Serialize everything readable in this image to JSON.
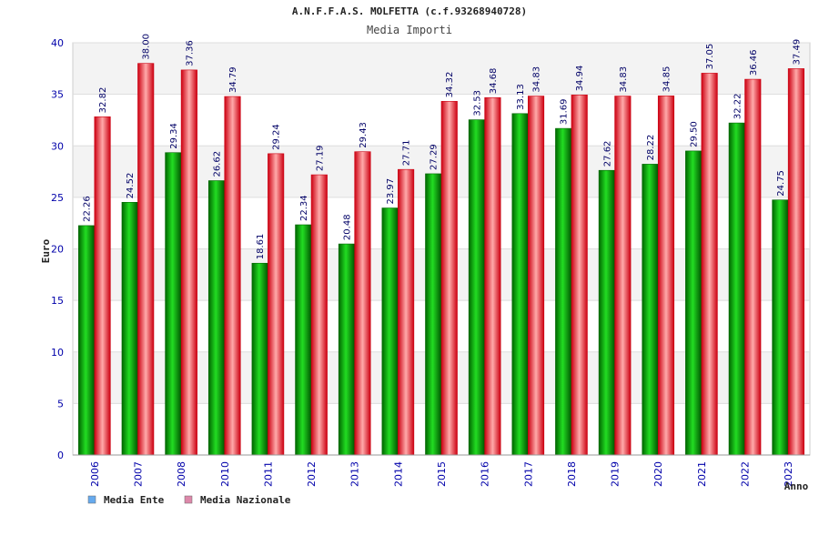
{
  "chart_data": {
    "type": "bar",
    "title": "A.N.F.F.A.S. MOLFETTA (c.f.93268940728)",
    "subtitle": "Media Importi",
    "xlabel": "Anno",
    "ylabel": "Euro",
    "ylim": [
      0,
      40
    ],
    "yticks": [
      "0",
      "5",
      "10",
      "15",
      "20",
      "25",
      "30",
      "35",
      "40"
    ],
    "categories": [
      "2006",
      "2007",
      "2008",
      "2010",
      "2011",
      "2012",
      "2013",
      "2014",
      "2015",
      "2016",
      "2017",
      "2018",
      "2019",
      "2020",
      "2021",
      "2022",
      "2023"
    ],
    "series": [
      {
        "name": "Media Ente",
        "color": "#00aa00",
        "values": [
          22.26,
          24.52,
          29.34,
          26.62,
          18.61,
          22.34,
          20.48,
          23.97,
          27.29,
          32.53,
          33.13,
          31.69,
          27.62,
          28.22,
          29.5,
          32.22,
          24.75
        ],
        "labels": [
          "22.26",
          "24.52",
          "29.34",
          "26.62",
          "18.61",
          "22.34",
          "20.48",
          "23.97",
          "27.29",
          "32.53",
          "33.13",
          "31.69",
          "27.62",
          "28.22",
          "29.50",
          "32.22",
          "24.75"
        ]
      },
      {
        "name": "Media Nazionale",
        "color": "#ee2233",
        "values": [
          32.82,
          38.0,
          37.36,
          34.79,
          29.24,
          27.19,
          29.43,
          27.71,
          34.32,
          34.68,
          34.83,
          34.94,
          34.83,
          34.85,
          37.05,
          36.46,
          37.49
        ],
        "labels": [
          "32.82",
          "38.00",
          "37.36",
          "34.79",
          "29.24",
          "27.19",
          "29.43",
          "27.71",
          "34.32",
          "34.68",
          "34.83",
          "34.94",
          "34.83",
          "34.85",
          "37.05",
          "36.46",
          "37.49"
        ]
      }
    ],
    "legend": {
      "placement": "bottom-left",
      "items": [
        {
          "label": "Media Ente",
          "swatch_color": "#66aaee"
        },
        {
          "label": "Media Nazionale",
          "swatch_color": "#dd88aa"
        }
      ]
    },
    "grid": true
  }
}
